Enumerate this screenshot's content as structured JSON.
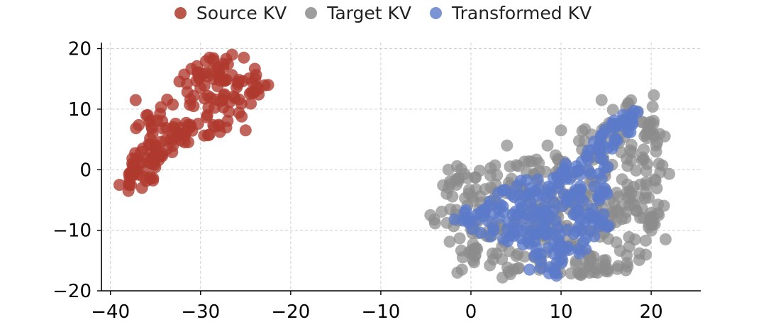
{
  "chart_data": {
    "type": "scatter",
    "title": "",
    "xlabel": "",
    "ylabel": "",
    "xlim": [
      -41,
      25.5
    ],
    "ylim": [
      -20,
      21
    ],
    "xticks": [
      -40,
      -30,
      -20,
      -10,
      0,
      10,
      20
    ],
    "yticks": [
      -20,
      -10,
      0,
      10,
      20
    ],
    "xtick_labels": [
      "−40",
      "−30",
      "−20",
      "−10",
      "0",
      "10",
      "20"
    ],
    "ytick_labels": [
      "−20",
      "−10",
      "0",
      "10",
      "20"
    ],
    "grid": true,
    "legend_position": "top-center",
    "series": [
      {
        "name": "Source KV",
        "color": "#b03a2e",
        "regions": [
          {
            "path": [
              [
                -38.5,
                -3.5
              ],
              [
                -39,
                -2
              ],
              [
                -38,
                0
              ],
              [
                -37.5,
                4
              ],
              [
                -37.5,
                7
              ],
              [
                -36,
                9
              ],
              [
                -34,
                11
              ],
              [
                -33,
                14
              ],
              [
                -31,
                17
              ],
              [
                -29,
                18.5
              ],
              [
                -26,
                18.5
              ],
              [
                -24,
                17
              ],
              [
                -22.5,
                14
              ],
              [
                -24,
                11
              ],
              [
                -25,
                8
              ],
              [
                -27,
                6
              ],
              [
                -30,
                5
              ],
              [
                -33,
                3
              ],
              [
                -36,
                -1
              ]
            ],
            "n": 160
          },
          {
            "path": [
              [
                -38,
                -3
              ],
              [
                -36,
                -3
              ],
              [
                -33,
                1
              ],
              [
                -35,
                4
              ],
              [
                -37,
                3
              ],
              [
                -38,
                0
              ]
            ],
            "n": 30
          }
        ],
        "points": [
          [
            -22.5,
            14
          ],
          [
            -25,
            6.5
          ],
          [
            -25.2,
            18.5
          ],
          [
            -37.2,
            11.5
          ],
          [
            -39,
            -2.5
          ],
          [
            -38,
            -3.5
          ],
          [
            -36.5,
            -3
          ],
          [
            -29,
            18.5
          ],
          [
            -26.5,
            19
          ],
          [
            -24,
            13
          ]
        ]
      },
      {
        "name": "Target KV",
        "color": "#8c8c8c",
        "regions": [
          {
            "path": [
              [
                -4.5,
                -7.5
              ],
              [
                -3,
                -2
              ],
              [
                -2.5,
                1
              ],
              [
                0,
                0
              ],
              [
                3,
                2
              ],
              [
                7,
                1.5
              ],
              [
                9,
                3
              ],
              [
                11,
                1
              ],
              [
                12,
                6
              ],
              [
                15,
                10
              ],
              [
                18,
                12
              ],
              [
                20,
                11.5
              ],
              [
                21,
                8
              ],
              [
                21,
                3
              ],
              [
                22,
                -2
              ],
              [
                21,
                -9
              ],
              [
                20,
                -14
              ],
              [
                17,
                -16.5
              ],
              [
                14,
                -17.5
              ],
              [
                11,
                -17.5
              ],
              [
                8,
                -17
              ],
              [
                5,
                -17.5
              ],
              [
                2,
                -17
              ],
              [
                0,
                -16
              ],
              [
                -1.5,
                -14
              ],
              [
                -3,
                -11
              ],
              [
                -4.5,
                -9
              ]
            ],
            "n": 420
          }
        ],
        "points": [
          [
            -1.5,
            -17
          ],
          [
            -1,
            -16.5
          ],
          [
            3.5,
            -17.8
          ],
          [
            10,
            6.5
          ],
          [
            11.8,
            -0.3
          ],
          [
            13.2,
            -17
          ],
          [
            22,
            -0.7
          ],
          [
            21.6,
            -11.5
          ],
          [
            18.7,
            -13.8
          ],
          [
            17.2,
            -16.6
          ],
          [
            -4.5,
            -7.5
          ],
          [
            -2.5,
            0
          ],
          [
            4,
            4
          ],
          [
            8.5,
            4
          ],
          [
            21.5,
            5.5
          ],
          [
            20.3,
            12.3
          ],
          [
            14.5,
            11.5
          ]
        ]
      },
      {
        "name": "Transformed KV",
        "color": "#5b7ac9",
        "regions": [
          {
            "path": [
              [
                -2,
                -8
              ],
              [
                0,
                -6
              ],
              [
                2,
                -4
              ],
              [
                5,
                -2
              ],
              [
                8,
                -1
              ],
              [
                10,
                0
              ],
              [
                12,
                1
              ],
              [
                13,
                4
              ],
              [
                14,
                6
              ],
              [
                15,
                7.5
              ],
              [
                17,
                9.5
              ],
              [
                18.8,
                10
              ],
              [
                18.5,
                7
              ],
              [
                16.5,
                5
              ],
              [
                15,
                2
              ],
              [
                15.5,
                -2
              ],
              [
                15,
                -5
              ],
              [
                15.5,
                -9
              ],
              [
                14,
                -12
              ],
              [
                12,
                -14
              ],
              [
                10,
                -16
              ],
              [
                9,
                -17.5
              ],
              [
                7,
                -16
              ],
              [
                6,
                -14
              ],
              [
                4,
                -12
              ],
              [
                2,
                -11
              ],
              [
                0,
                -10.5
              ],
              [
                -1.5,
                -9.5
              ]
            ],
            "n": 240
          }
        ],
        "points": [
          [
            6.5,
            -16.5
          ],
          [
            9.5,
            -17.5
          ],
          [
            18.5,
            9.5
          ],
          [
            10.5,
            1
          ],
          [
            -1.8,
            -8.2
          ]
        ]
      }
    ]
  }
}
